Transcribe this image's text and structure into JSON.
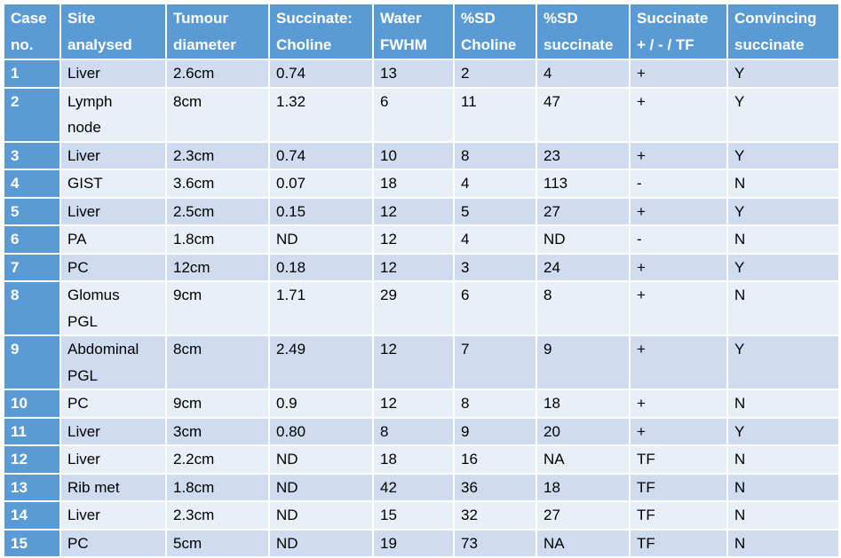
{
  "table": {
    "header": [
      "Case\nno.",
      "Site\nanalysed",
      "Tumour\ndiameter",
      "Succinate:\nCholine",
      "Water\nFWHM",
      "%SD\nCholine",
      "%SD\nsuccinate",
      "Succinate\n+ / - / TF",
      "Convincing\nsuccinate"
    ],
    "rows": [
      [
        "1",
        "Liver",
        "2.6cm",
        "0.74",
        "13",
        "2",
        "4",
        "+",
        "Y"
      ],
      [
        "2",
        "Lymph\nnode",
        "8cm",
        "1.32",
        "6",
        "11",
        "47",
        "+",
        "Y"
      ],
      [
        "3",
        "Liver",
        "2.3cm",
        "0.74",
        "10",
        "8",
        "23",
        "+",
        "Y"
      ],
      [
        "4",
        "GIST",
        "3.6cm",
        "0.07",
        "18",
        "4",
        "113",
        "-",
        "N"
      ],
      [
        "5",
        "Liver",
        "2.5cm",
        "0.15",
        "12",
        "5",
        "27",
        "+",
        "Y"
      ],
      [
        "6",
        "PA",
        "1.8cm",
        "ND",
        "12",
        "4",
        "ND",
        "-",
        "N"
      ],
      [
        "7",
        "PC",
        "12cm",
        "0.18",
        "12",
        "3",
        "24",
        "+",
        "Y"
      ],
      [
        "8",
        "Glomus\nPGL",
        "9cm",
        "1.71",
        "29",
        "6",
        "8",
        "+",
        "N"
      ],
      [
        "9",
        "Abdominal\nPGL",
        "8cm",
        "2.49",
        "12",
        "7",
        "9",
        "+",
        "Y"
      ],
      [
        "10",
        "PC",
        "9cm",
        "0.9",
        "12",
        "8",
        "18",
        "+",
        "N"
      ],
      [
        "11",
        "Liver",
        "3cm",
        "0.80",
        "8",
        "9",
        "20",
        "+",
        "Y"
      ],
      [
        "12",
        "Liver",
        "2.2cm",
        "ND",
        "18",
        "16",
        "NA",
        "TF",
        "N"
      ],
      [
        "13",
        "Rib met",
        "1.8cm",
        "ND",
        "42",
        "36",
        "18",
        "TF",
        "N"
      ],
      [
        "14",
        "Liver",
        "2.3cm",
        "ND",
        "15",
        "32",
        "27",
        "TF",
        "N"
      ],
      [
        "15",
        "PC",
        "5cm",
        "ND",
        "19",
        "73",
        "NA",
        "TF",
        "N"
      ]
    ]
  }
}
